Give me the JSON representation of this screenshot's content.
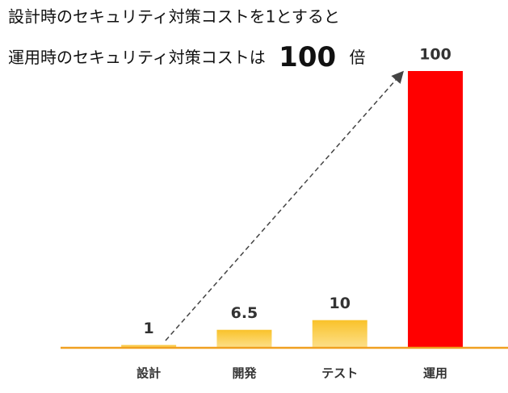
{
  "chart_data": {
    "type": "bar",
    "title": [
      "設計時のセキュリティ対策コストを1とすると",
      "運用時のセキュリティ対策コストは",
      "100",
      "倍"
    ],
    "categories": [
      "設計",
      "開発",
      "テスト",
      "運用"
    ],
    "values": [
      1,
      6.5,
      10,
      100
    ],
    "colors": [
      "#f8c22a",
      "#f8c22a",
      "#f8c22a",
      "#ff0000"
    ],
    "ylim": [
      0,
      100
    ]
  }
}
